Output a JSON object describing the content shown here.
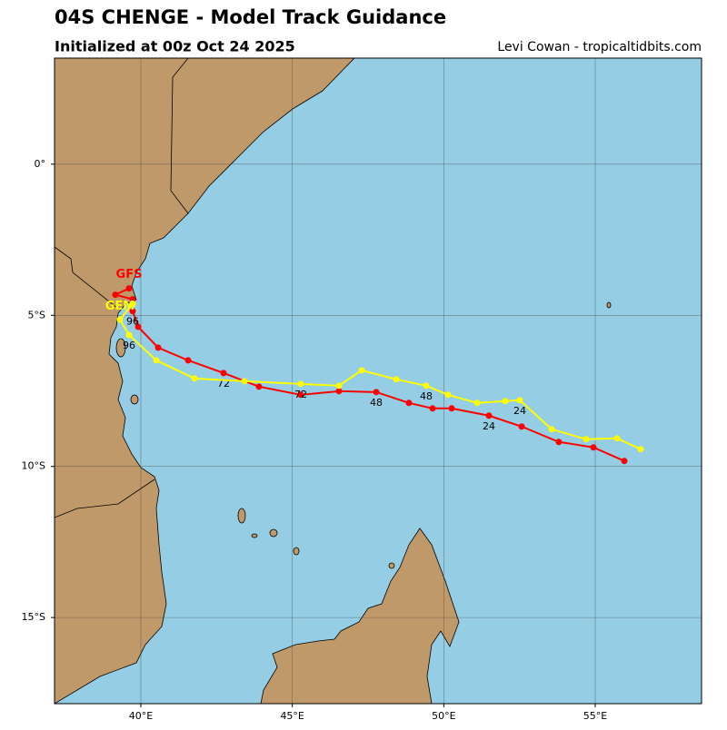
{
  "chart_data": {
    "type": "track",
    "title": "04S CHENGE - Model Track Guidance",
    "subtitle": "Initialized at 00z Oct 24 2025",
    "credit": "Levi Cowan - tropicaltidbits.com",
    "xlim": [
      37.15,
      58.51
    ],
    "ylim": [
      -17.85,
      3.51
    ],
    "xticks": [
      {
        "value": 40,
        "label": "40°E"
      },
      {
        "value": 45,
        "label": "45°E"
      },
      {
        "value": 50,
        "label": "50°E"
      },
      {
        "value": 55,
        "label": "55°E"
      }
    ],
    "yticks": [
      {
        "value": 0,
        "label": "0°"
      },
      {
        "value": -5,
        "label": "5°S"
      },
      {
        "value": -10,
        "label": "10°S"
      },
      {
        "value": -15,
        "label": "15°S"
      }
    ],
    "grid": true,
    "series": [
      {
        "name": "GFS",
        "color": "#ff0000",
        "x": [
          55.96,
          54.94,
          53.8,
          52.57,
          51.49,
          50.26,
          49.63,
          48.85,
          47.77,
          46.54,
          45.28,
          43.9,
          42.73,
          41.56,
          40.57,
          39.91,
          39.73,
          39.73,
          39.16,
          39.61
        ],
        "y": [
          -9.82,
          -9.37,
          -9.19,
          -8.68,
          -8.32,
          -8.08,
          -8.08,
          -7.9,
          -7.54,
          -7.51,
          -7.63,
          -7.36,
          -6.91,
          -6.49,
          -6.07,
          -5.38,
          -4.86,
          -4.47,
          -4.32,
          -4.11
        ],
        "point_labels": [
          null,
          null,
          null,
          null,
          "24",
          null,
          null,
          null,
          "48",
          null,
          null,
          null,
          "72",
          null,
          null,
          null,
          "96",
          null,
          null,
          null
        ]
      },
      {
        "name": "GEM",
        "color": "#ffff00",
        "x": [
          56.5,
          55.72,
          54.7,
          53.56,
          52.51,
          52.03,
          51.1,
          50.14,
          49.42,
          48.43,
          47.29,
          46.54,
          45.28,
          43.42,
          41.77,
          40.51,
          39.61,
          39.31,
          39.73
        ],
        "y": [
          -9.43,
          -9.07,
          -9.1,
          -8.77,
          -7.81,
          -7.84,
          -7.9,
          -7.63,
          -7.33,
          -7.12,
          -6.82,
          -7.33,
          -7.27,
          -7.18,
          -7.09,
          -6.49,
          -5.65,
          -5.14,
          -4.62
        ],
        "point_labels": [
          null,
          null,
          null,
          null,
          "24",
          null,
          null,
          null,
          "48",
          null,
          null,
          null,
          "72",
          null,
          null,
          null,
          "96",
          null,
          null
        ]
      }
    ]
  }
}
